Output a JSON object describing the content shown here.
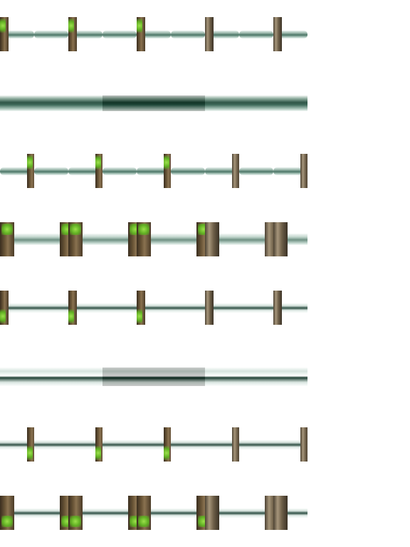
{
  "sheet": {
    "background": "#ffffff",
    "rows": [
      {
        "name": "stream-row-1",
        "water": "thin",
        "trunks": "single-right",
        "moss": "top-left",
        "variant": "vertical-bank"
      },
      {
        "name": "stream-row-2",
        "water": "thick",
        "trunks": "none",
        "moss": "none",
        "variant": "open-water"
      },
      {
        "name": "stream-row-3",
        "water": "thin",
        "trunks": "single-left",
        "moss": "top-left",
        "variant": "vertical-bank"
      },
      {
        "name": "stream-row-4",
        "water": "light",
        "trunks": "wide",
        "moss": "top",
        "variant": "thick-bank"
      },
      {
        "name": "stream-row-5",
        "water": "foam-thin",
        "trunks": "single-right",
        "moss": "bottom-left",
        "variant": "foam-bank"
      },
      {
        "name": "stream-row-6",
        "water": "foam-thick",
        "trunks": "none",
        "moss": "none",
        "variant": "open-foam"
      },
      {
        "name": "stream-row-7",
        "water": "foam-thin",
        "trunks": "single-left",
        "moss": "bottom-left",
        "variant": "foam-bank"
      },
      {
        "name": "stream-row-8",
        "water": "foam-thin",
        "trunks": "wide",
        "moss": "bottom",
        "variant": "thick-foam-bank"
      }
    ],
    "palette": {
      "water_dark": "#2f5647",
      "water_mid": "#6f9183",
      "foam": "#ffffff",
      "trunk": "#6b5638",
      "rock": "#a6957a",
      "moss": "#5fae22"
    }
  }
}
